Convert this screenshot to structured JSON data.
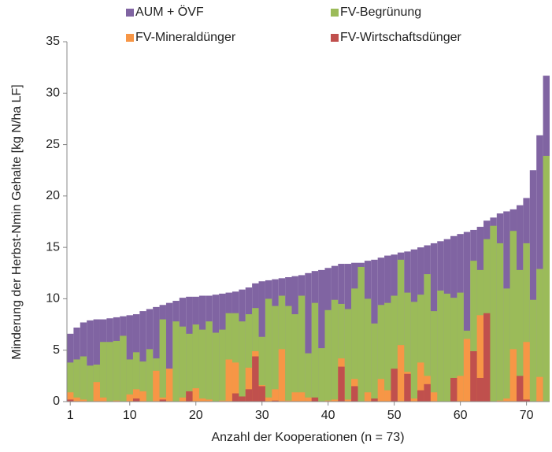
{
  "chart_data": {
    "type": "bar",
    "overlay": true,
    "x_label": "Anzahl der Kooperationen (n = 73)",
    "y_label": "Minderung der Herbst-Nmin Gehalte [kg N/ha LF]",
    "x": [
      1,
      2,
      3,
      4,
      5,
      6,
      7,
      8,
      9,
      10,
      11,
      12,
      13,
      14,
      15,
      16,
      17,
      18,
      19,
      20,
      21,
      22,
      23,
      24,
      25,
      26,
      27,
      28,
      29,
      30,
      31,
      32,
      33,
      34,
      35,
      36,
      37,
      38,
      39,
      40,
      41,
      42,
      43,
      44,
      45,
      46,
      47,
      48,
      49,
      50,
      51,
      52,
      53,
      54,
      55,
      56,
      57,
      58,
      59,
      60,
      61,
      62,
      63,
      64,
      65,
      66,
      67,
      68,
      69,
      70,
      71,
      72,
      73
    ],
    "xlim": [
      0.5,
      73.5
    ],
    "xticks": [
      1,
      10,
      20,
      30,
      40,
      50,
      60,
      70
    ],
    "ylim": [
      0,
      35
    ],
    "yticks": [
      0,
      5,
      10,
      15,
      20,
      25,
      30,
      35
    ],
    "series": [
      {
        "name": "AUM + ÖVF",
        "color": "#8064a2",
        "values": [
          6.6,
          7.2,
          7.7,
          7.9,
          8.0,
          8.0,
          8.1,
          8.2,
          8.3,
          8.4,
          8.5,
          8.8,
          9.0,
          9.2,
          9.4,
          9.6,
          9.8,
          10.1,
          10.2,
          10.2,
          10.3,
          10.3,
          10.4,
          10.5,
          10.6,
          10.7,
          10.9,
          11.1,
          11.5,
          11.7,
          11.8,
          11.9,
          12.0,
          12.1,
          12.2,
          12.3,
          12.5,
          12.7,
          12.8,
          13.0,
          13.2,
          13.4,
          13.4,
          13.5,
          13.5,
          13.7,
          13.8,
          14.0,
          14.2,
          14.3,
          14.5,
          14.6,
          14.8,
          15.0,
          15.2,
          15.4,
          15.6,
          15.8,
          16.1,
          16.3,
          16.5,
          16.7,
          17.0,
          17.6,
          17.9,
          18.3,
          18.5,
          18.7,
          19.1,
          19.8,
          22.5,
          25.9,
          31.7
        ]
      },
      {
        "name": "FV-Begrünung",
        "color": "#9bbb59",
        "values": [
          3.8,
          4.1,
          4.4,
          3.5,
          3.6,
          5.8,
          5.8,
          5.9,
          6.4,
          4.1,
          4.8,
          3.9,
          5.1,
          4.2,
          8.0,
          3.2,
          7.8,
          7.3,
          6.6,
          7.5,
          7.0,
          7.8,
          6.7,
          7.0,
          8.6,
          8.6,
          7.8,
          8.5,
          9.1,
          6.3,
          10.0,
          9.3,
          10.3,
          9.3,
          8.5,
          10.3,
          4.7,
          9.6,
          5.2,
          8.9,
          9.9,
          9.5,
          9.0,
          11.0,
          13.1,
          10.0,
          7.6,
          9.4,
          9.6,
          10.3,
          13.8,
          10.6,
          9.7,
          10.4,
          12.4,
          8.8,
          10.8,
          10.5,
          10.1,
          10.6,
          6.9,
          13.7,
          12.8,
          15.8,
          17.1,
          15.4,
          11.0,
          16.6,
          12.8,
          15.4,
          9.9,
          12.9,
          23.9
        ]
      },
      {
        "name": "FV-Mineraldünger",
        "color": "#f79646",
        "values": [
          0.9,
          0.4,
          0.2,
          0,
          1.9,
          0.4,
          0,
          0.1,
          0,
          0.7,
          1.2,
          1.0,
          0,
          3.0,
          0.4,
          3.2,
          0,
          0.4,
          1.0,
          1.3,
          0.3,
          0.2,
          0,
          0.1,
          4.1,
          3.8,
          0.3,
          3.3,
          4.9,
          1.6,
          0.4,
          1.2,
          5.1,
          0.1,
          0.9,
          0.9,
          0.4,
          0.2,
          0,
          0.1,
          0.2,
          4.2,
          0.2,
          2.2,
          0,
          0.9,
          0.2,
          2.2,
          1.1,
          0,
          5.5,
          2.9,
          0.3,
          3.8,
          2.5,
          0.9,
          0,
          0,
          0.3,
          2.5,
          6.1,
          4.6,
          8.4,
          0.3,
          0,
          0.1,
          0.3,
          5.1,
          1.3,
          5.8,
          0,
          2.4,
          0
        ]
      },
      {
        "name": "FV-Wirtschaftsdünger",
        "color": "#c0504d",
        "values": [
          0.2,
          0,
          0,
          0,
          0,
          0,
          0,
          0,
          0,
          0,
          0.3,
          0,
          0,
          0,
          0.2,
          0,
          0,
          0,
          1.0,
          0,
          0,
          0,
          0,
          0,
          0,
          0.8,
          0.5,
          1.2,
          4.4,
          1.5,
          0,
          0.1,
          0,
          0,
          0,
          0,
          0,
          0.4,
          0,
          0,
          0,
          3.4,
          0,
          1.5,
          0,
          0,
          0.3,
          0,
          0,
          3.2,
          0,
          2.7,
          0,
          1.1,
          1.7,
          0,
          0,
          0,
          2.3,
          0,
          0,
          4.9,
          2.3,
          8.6,
          0,
          0,
          0,
          0,
          2.5,
          0.2,
          0,
          0,
          0
        ]
      }
    ]
  }
}
